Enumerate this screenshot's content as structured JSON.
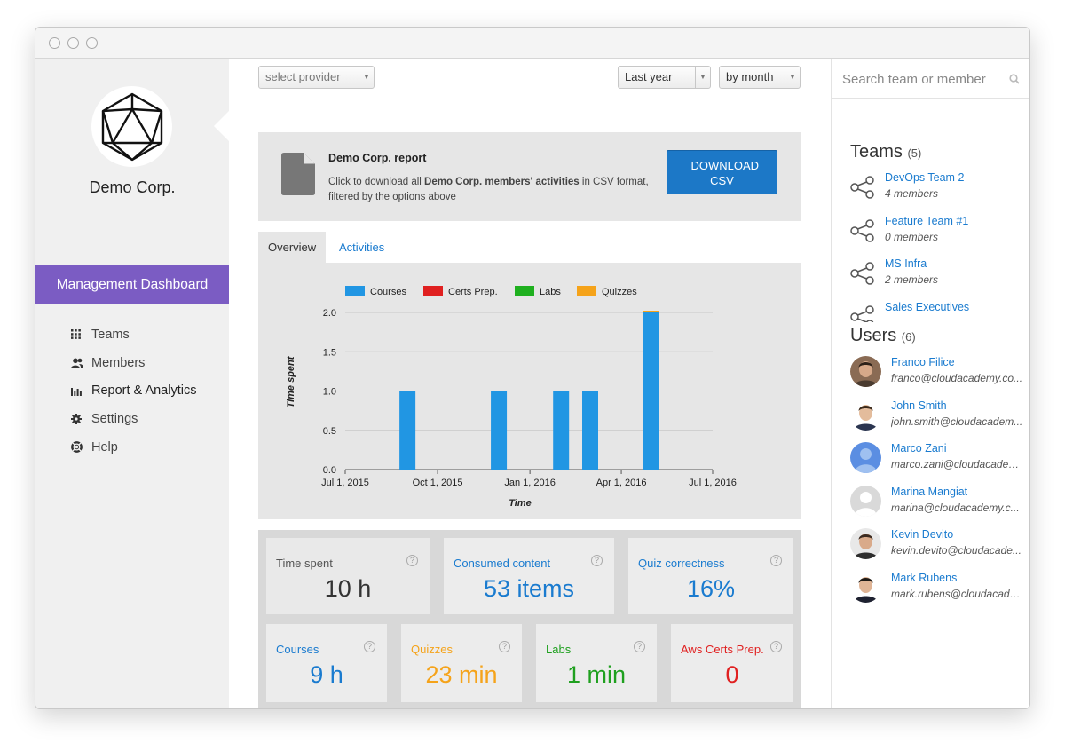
{
  "sidebar": {
    "company": "Demo Corp.",
    "section": "Management Dashboard",
    "nav": [
      {
        "label": "Teams",
        "icon": "grid-icon"
      },
      {
        "label": "Members",
        "icon": "users-icon"
      },
      {
        "label": "Report & Analytics",
        "icon": "bar-chart-icon"
      },
      {
        "label": "Settings",
        "icon": "gear-icon"
      },
      {
        "label": "Help",
        "icon": "life-ring-icon"
      }
    ]
  },
  "filters": {
    "provider": "select provider",
    "period": "Last year",
    "granularity": "by month"
  },
  "report": {
    "title": "Demo Corp. report",
    "desc_prefix": "Click to download all ",
    "desc_bold": "Demo Corp. members' activities",
    "desc_suffix": " in CSV format, filtered by the options above",
    "download": "DOWNLOAD CSV"
  },
  "tabs": [
    "Overview",
    "Activities"
  ],
  "chart_data": {
    "type": "bar",
    "xlabel": "Time",
    "ylabel": "Time spent",
    "ylim": [
      0,
      2.0
    ],
    "yticks": [
      "0.0",
      "0.5",
      "1.0",
      "1.5",
      "2.0"
    ],
    "xticks": [
      "Jul 1, 2015",
      "Oct 1, 2015",
      "Jan 1, 2016",
      "Apr 1, 2016",
      "Jul 1, 2016"
    ],
    "legend": [
      {
        "name": "Courses",
        "color": "#2196e3"
      },
      {
        "name": "Certs Prep.",
        "color": "#e02020"
      },
      {
        "name": "Labs",
        "color": "#1fb01f"
      },
      {
        "name": "Quizzes",
        "color": "#f5a31a"
      }
    ],
    "series": [
      {
        "name": "Courses",
        "points": [
          {
            "x": "2015-09-01",
            "y": 1.0
          },
          {
            "x": "2015-12-01",
            "y": 1.0
          },
          {
            "x": "2016-02-01",
            "y": 1.0
          },
          {
            "x": "2016-03-01",
            "y": 1.0
          },
          {
            "x": "2016-05-01",
            "y": 2.0
          }
        ]
      }
    ],
    "grid": true,
    "legend_position": "top"
  },
  "stats": {
    "time_spent": {
      "label": "Time spent",
      "value": "10 h"
    },
    "consumed": {
      "label": "Consumed content",
      "value": "53 items"
    },
    "quiz": {
      "label": "Quiz correctness",
      "value": "16%"
    },
    "courses": {
      "label": "Courses",
      "value": "9 h"
    },
    "quizzes": {
      "label": "Quizzes",
      "value": "23 min"
    },
    "labs": {
      "label": "Labs",
      "value": "1 min"
    },
    "certs": {
      "label": "Aws Certs Prep.",
      "value": "0"
    },
    "help": "?"
  },
  "colors": {
    "accent": "#7b5cc3",
    "link": "#1a7bcf",
    "courses": "#2196e3",
    "quizzes": "#f5a31a",
    "labs": "#1fb01f",
    "certs": "#e02020"
  },
  "right": {
    "search_placeholder": "Search team or member",
    "teams_title": "Teams",
    "teams_count": "(5)",
    "teams": [
      {
        "name": "DevOps Team 2",
        "members": "4 members"
      },
      {
        "name": "Feature Team #1",
        "members": "0 members"
      },
      {
        "name": "MS Infra",
        "members": "2 members"
      },
      {
        "name": "Sales Executives",
        "members": ""
      }
    ],
    "users_title": "Users",
    "users_count": "(6)",
    "users": [
      {
        "name": "Franco Filice",
        "email": "franco@cloudacademy.co..."
      },
      {
        "name": "John Smith",
        "email": "john.smith@cloudacadem..."
      },
      {
        "name": "Marco Zani",
        "email": "marco.zani@cloudacadem..."
      },
      {
        "name": "Marina Mangiat",
        "email": "marina@cloudacademy.c..."
      },
      {
        "name": "Kevin Devito",
        "email": "kevin.devito@cloudacade..."
      },
      {
        "name": "Mark Rubens",
        "email": "mark.rubens@cloudacade..."
      }
    ]
  }
}
